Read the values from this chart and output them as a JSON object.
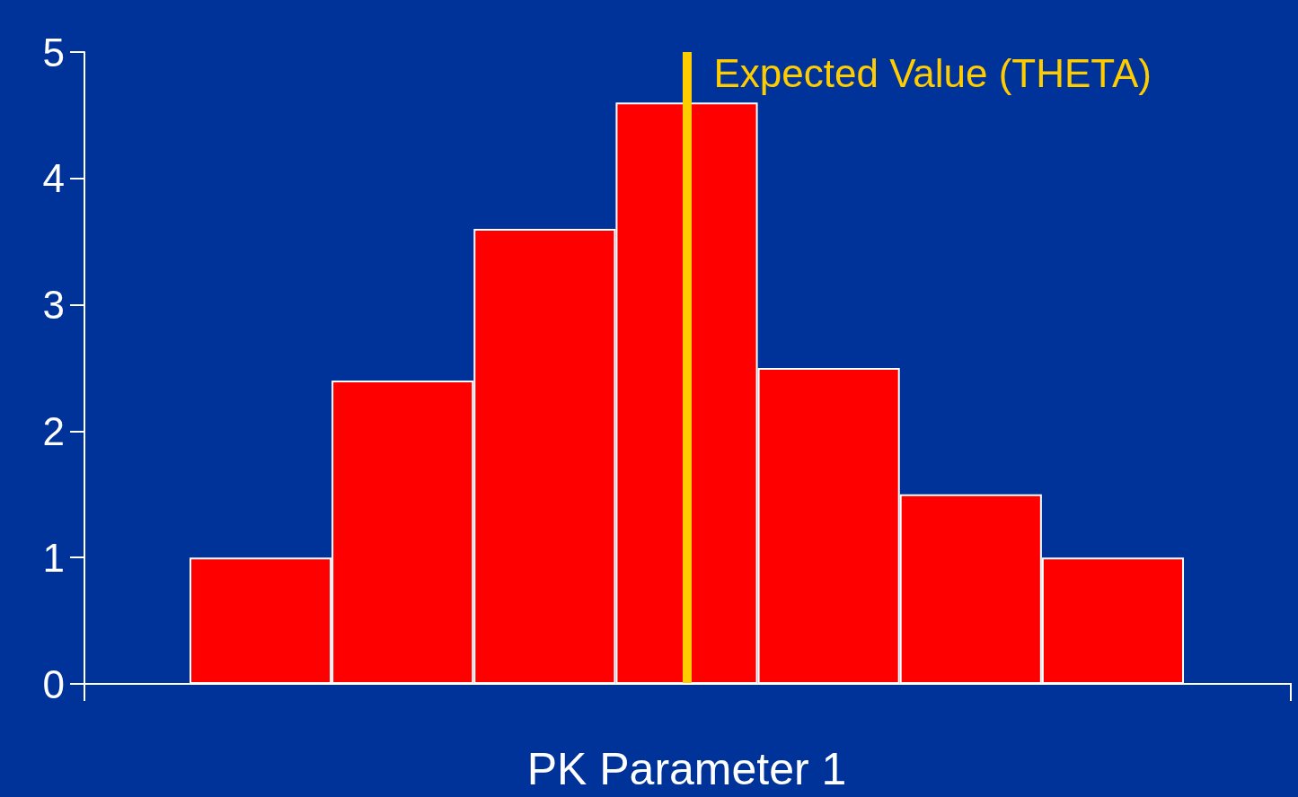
{
  "chart_data": {
    "type": "bar",
    "xlabel": "PK Parameter 1",
    "categories": [
      null,
      null,
      null,
      null,
      null,
      null,
      null
    ],
    "values": [
      1,
      2.4,
      3.6,
      4.6,
      2.5,
      1.5,
      1
    ],
    "color": "#ff0000",
    "ylim": [
      0,
      5
    ],
    "yticks": [
      0,
      1,
      2,
      3,
      4,
      5
    ],
    "tick_labels": "y",
    "grid": false,
    "annotations": [
      "Expected Value (THETA)"
    ]
  }
}
